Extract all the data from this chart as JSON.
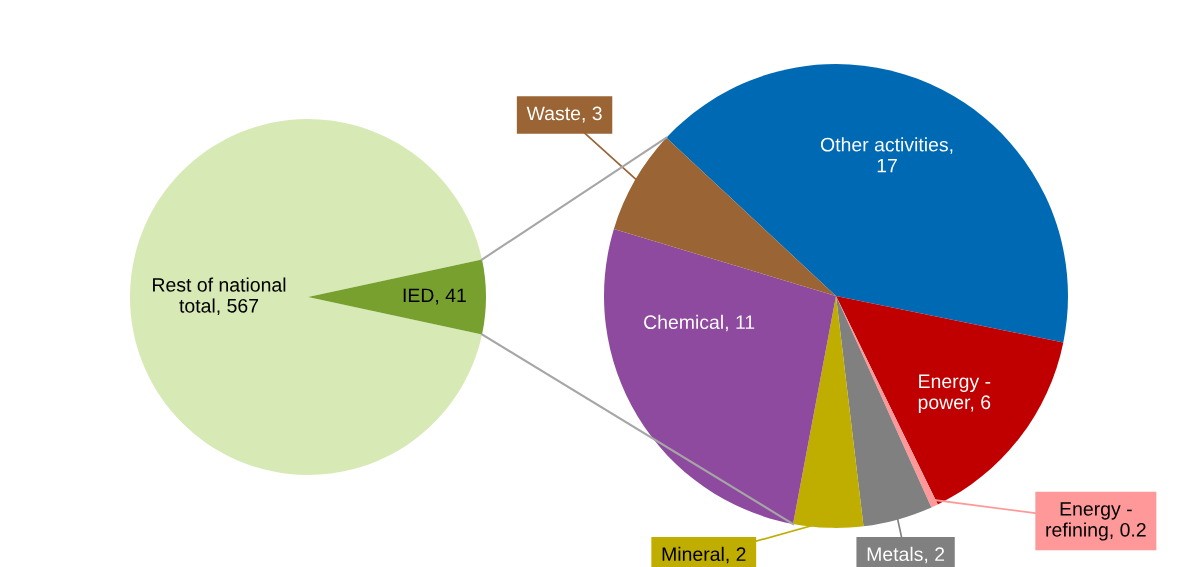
{
  "chart_data": [
    {
      "type": "pie",
      "categories": [
        "Rest of national total, 567",
        "IED, 41"
      ],
      "values": [
        567,
        41
      ],
      "colors": [
        "#d7e9b4",
        "#77a02e"
      ]
    },
    {
      "type": "pie",
      "categories": [
        "Other activities, 17",
        "Energy - power, 6",
        "Energy - refining, 0.2",
        "Metals, 2",
        "Mineral, 2",
        "Chemical, 11",
        "Waste, 3"
      ],
      "values": [
        17,
        6,
        0.2,
        2,
        2,
        11,
        3
      ],
      "colors": [
        "#0069b4",
        "#c00000",
        "#ff9999",
        "#808080",
        "#bfae00",
        "#8e4a9e",
        "#9a6434"
      ]
    }
  ]
}
